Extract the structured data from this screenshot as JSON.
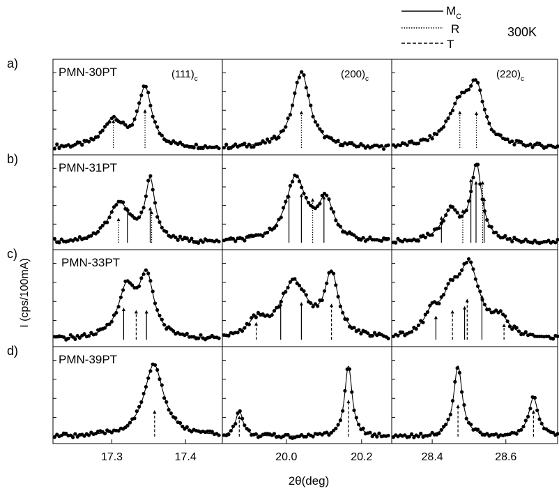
{
  "chart_data": {
    "type": "line",
    "ylabel": "I (cps/100mA)",
    "xlabel": "2θ(deg)",
    "temperature": "300K",
    "legend": {
      "placement": "top-right",
      "entries": [
        {
          "label": "M",
          "sub": "C",
          "style": "solid"
        },
        {
          "label": "R",
          "sub": "",
          "style": "dotted"
        },
        {
          "label": "T",
          "sub": "",
          "style": "dashed"
        }
      ]
    },
    "columns": [
      {
        "reflection": "(111)",
        "sub": "c",
        "xlim": [
          17.22,
          17.45
        ],
        "ticks": [
          17.3,
          17.4
        ],
        "tick_labels": [
          "17.3",
          "17.4"
        ]
      },
      {
        "reflection": "(200)",
        "sub": "c",
        "xlim": [
          19.83,
          20.28
        ],
        "ticks": [
          20.0,
          20.2
        ],
        "tick_labels": [
          "20.0",
          "20.2"
        ]
      },
      {
        "reflection": "(220)",
        "sub": "c",
        "xlim": [
          28.29,
          28.75
        ],
        "ticks": [
          28.4,
          28.6
        ],
        "tick_labels": [
          "28.4",
          "28.6"
        ]
      }
    ],
    "rows": [
      {
        "letter": "a)",
        "sample": "PMN-30PT",
        "panels": [
          {
            "peaks": [
              {
                "x": 17.302,
                "h": 0.35,
                "w": 0.016
              },
              {
                "x": 17.345,
                "h": 0.74,
                "w": 0.011
              }
            ],
            "markers": [
              {
                "x": 17.302,
                "h": 0.36,
                "style": "dotted"
              },
              {
                "x": 17.345,
                "h": 0.49,
                "style": "dotted"
              }
            ]
          },
          {
            "peaks": [
              {
                "x": 20.04,
                "h": 0.96,
                "w": 0.027
              }
            ],
            "markers": [
              {
                "x": 20.04,
                "h": 0.47,
                "style": "dotted"
              }
            ]
          },
          {
            "peaks": [
              {
                "x": 28.475,
                "h": 0.52,
                "w": 0.04
              },
              {
                "x": 28.52,
                "h": 0.64,
                "w": 0.024
              }
            ],
            "markers": [
              {
                "x": 28.475,
                "h": 0.47,
                "style": "dotted"
              },
              {
                "x": 28.52,
                "h": 0.46,
                "style": "dotted"
              }
            ]
          }
        ]
      },
      {
        "letter": "b)",
        "sample": "PMN-31PT",
        "panels": [
          {
            "peaks": [
              {
                "x": 17.31,
                "h": 0.5,
                "w": 0.018
              },
              {
                "x": 17.352,
                "h": 0.76,
                "w": 0.008
              }
            ],
            "markers": [
              {
                "x": 17.309,
                "h": 0.32,
                "style": "dotted"
              },
              {
                "x": 17.321,
                "h": 0.46,
                "style": "solid"
              },
              {
                "x": 17.352,
                "h": 0.46,
                "style": "solid"
              },
              {
                "x": 17.354,
                "h": 0.41,
                "style": "dotted"
              }
            ]
          },
          {
            "peaks": [
              {
                "x": 20.025,
                "h": 0.82,
                "w": 0.032
              },
              {
                "x": 20.105,
                "h": 0.5,
                "w": 0.025
              }
            ],
            "markers": [
              {
                "x": 20.007,
                "h": 0.62,
                "style": "solid"
              },
              {
                "x": 20.04,
                "h": 0.63,
                "style": "solid"
              },
              {
                "x": 20.07,
                "h": 0.57,
                "style": "dotted"
              },
              {
                "x": 20.1,
                "h": 0.6,
                "style": "solid"
              }
            ]
          },
          {
            "peaks": [
              {
                "x": 28.45,
                "h": 0.38,
                "w": 0.03
              },
              {
                "x": 28.52,
                "h": 0.96,
                "w": 0.018
              }
            ],
            "markers": [
              {
                "x": 28.425,
                "h": 0.34,
                "style": "solid"
              },
              {
                "x": 28.483,
                "h": 0.43,
                "style": "dotted"
              },
              {
                "x": 28.505,
                "h": 0.82,
                "style": "solid"
              },
              {
                "x": 28.519,
                "h": 0.79,
                "style": "solid"
              },
              {
                "x": 28.537,
                "h": 0.79,
                "style": "dotted"
              },
              {
                "x": 28.541,
                "h": 0.58,
                "style": "solid"
              }
            ]
          }
        ]
      },
      {
        "letter": "c)",
        "sample": "PMN-33PT",
        "panels": [
          {
            "peaks": [
              {
                "x": 17.32,
                "h": 0.6,
                "w": 0.014
              },
              {
                "x": 17.347,
                "h": 0.75,
                "w": 0.012
              }
            ],
            "markers": [
              {
                "x": 17.316,
                "h": 0.4,
                "style": "solid"
              },
              {
                "x": 17.333,
                "h": 0.37,
                "style": "dashed"
              },
              {
                "x": 17.347,
                "h": 0.37,
                "style": "solid"
              }
            ]
          },
          {
            "peaks": [
              {
                "x": 19.92,
                "h": 0.18,
                "w": 0.025
              },
              {
                "x": 20.02,
                "h": 0.7,
                "w": 0.045
              },
              {
                "x": 20.12,
                "h": 0.75,
                "w": 0.022
              }
            ],
            "markers": [
              {
                "x": 19.92,
                "h": 0.22,
                "style": "dashed"
              },
              {
                "x": 19.985,
                "h": 0.46,
                "style": "solid"
              },
              {
                "x": 20.04,
                "h": 0.47,
                "style": "solid"
              },
              {
                "x": 20.12,
                "h": 0.45,
                "style": "dashed"
              }
            ]
          },
          {
            "peaks": [
              {
                "x": 28.4,
                "h": 0.25,
                "w": 0.026
              },
              {
                "x": 28.45,
                "h": 0.4,
                "w": 0.028
              },
              {
                "x": 28.5,
                "h": 0.85,
                "w": 0.035
              },
              {
                "x": 28.585,
                "h": 0.2,
                "w": 0.025
              }
            ],
            "markers": [
              {
                "x": 28.41,
                "h": 0.3,
                "style": "solid"
              },
              {
                "x": 28.455,
                "h": 0.37,
                "style": "dashed"
              },
              {
                "x": 28.488,
                "h": 0.42,
                "style": "solid"
              },
              {
                "x": 28.495,
                "h": 0.51,
                "style": "dashed"
              },
              {
                "x": 28.535,
                "h": 0.56,
                "style": "solid"
              },
              {
                "x": 28.595,
                "h": 0.2,
                "style": "dashed"
              }
            ]
          }
        ]
      },
      {
        "letter": "d)",
        "sample": "PMN-39PT",
        "panels": [
          {
            "peaks": [
              {
                "x": 17.357,
                "h": 0.9,
                "w": 0.016
              }
            ],
            "markers": [
              {
                "x": 17.358,
                "h": 0.33,
                "style": "dashed"
              }
            ]
          },
          {
            "peaks": [
              {
                "x": 19.875,
                "h": 0.32,
                "w": 0.012
              },
              {
                "x": 20.165,
                "h": 0.88,
                "w": 0.012
              }
            ],
            "markers": [
              {
                "x": 19.875,
                "h": 0.26,
                "style": "dashed"
              },
              {
                "x": 20.165,
                "h": 0.46,
                "style": "dashed"
              }
            ]
          },
          {
            "peaks": [
              {
                "x": 28.47,
                "h": 0.88,
                "w": 0.014
              },
              {
                "x": 28.675,
                "h": 0.48,
                "w": 0.016
              }
            ],
            "markers": [
              {
                "x": 28.47,
                "h": 0.4,
                "style": "dashed"
              },
              {
                "x": 28.675,
                "h": 0.33,
                "style": "dashed"
              }
            ]
          }
        ]
      }
    ]
  }
}
